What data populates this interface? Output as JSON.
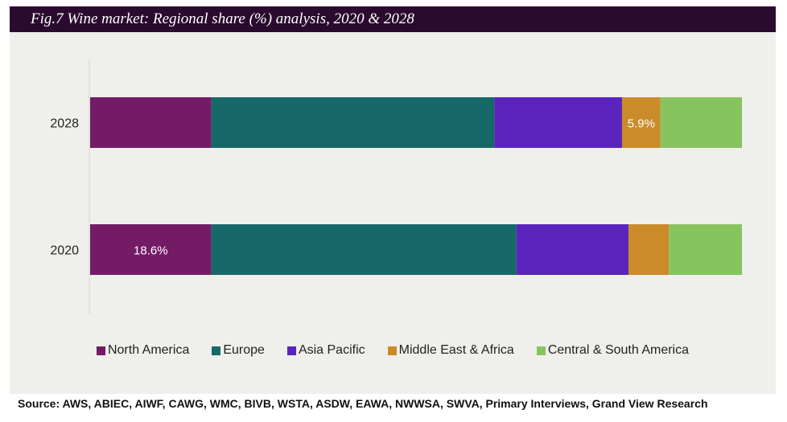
{
  "title": "Fig.7  Wine market: Regional share (%) analysis, 2020 & 2028",
  "source": "Source: AWS, ABIEC, AIWF, CAWG, WMC, BIVB, WSTA, ASDW, EAWA, NWWSA, SWVA, Primary Interviews, Grand View Research",
  "colors": {
    "title_bg": "#2a0a2e",
    "chart_bg": "#efefec"
  },
  "chart_data": {
    "type": "bar",
    "orientation": "horizontal",
    "stacked": true,
    "categories": [
      "2028",
      "2020"
    ],
    "ylim": [
      0,
      100
    ],
    "legend_position": "bottom",
    "grid": false,
    "series": [
      {
        "name": "North America",
        "color": "#741b66",
        "values": [
          18.6,
          18.6
        ],
        "labels": [
          "",
          "18.6%"
        ]
      },
      {
        "name": "Europe",
        "color": "#176868",
        "values": [
          43.4,
          46.8
        ],
        "labels": [
          "",
          ""
        ]
      },
      {
        "name": "Asia Pacific",
        "color": "#5a24bd",
        "values": [
          19.6,
          17.2
        ],
        "labels": [
          "",
          ""
        ]
      },
      {
        "name": "Middle East & Africa",
        "color": "#cb8b2a",
        "values": [
          5.9,
          6.2
        ],
        "labels": [
          "5.9%",
          ""
        ]
      },
      {
        "name": "Central & South America",
        "color": "#88c45e",
        "values": [
          12.5,
          11.2
        ],
        "labels": [
          "",
          ""
        ]
      }
    ]
  }
}
